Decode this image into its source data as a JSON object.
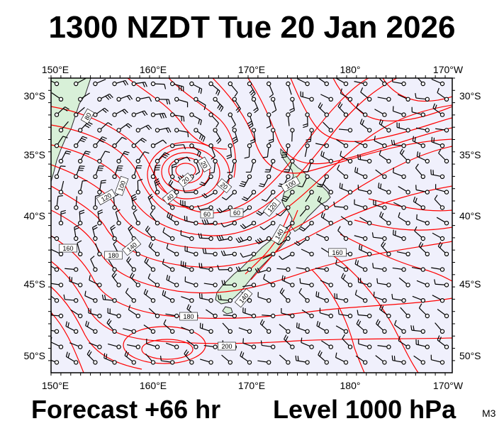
{
  "title": "1300 NZDT Tue 20 Jan 2026",
  "footer": {
    "forecast": "Forecast +66 hr",
    "level": "Level 1000 hPa",
    "code": "M3"
  },
  "axes": {
    "longitude_labels": [
      "150°E",
      "160°E",
      "170°E",
      "180°",
      "170°W"
    ],
    "latitude_labels": [
      "30°S",
      "35°S",
      "40°S",
      "45°S",
      "50°S"
    ]
  },
  "contour_labels": [
    "20",
    "20",
    "20",
    "40",
    "60",
    "60",
    "80",
    "100",
    "100",
    "120",
    "120",
    "140",
    "140",
    "140",
    "160",
    "160",
    "180",
    "180",
    "200"
  ],
  "colors": {
    "ocean": "#f0f0fc",
    "land": "#d8f0d8",
    "contour": "#ff0000",
    "wind": "#000000"
  }
}
